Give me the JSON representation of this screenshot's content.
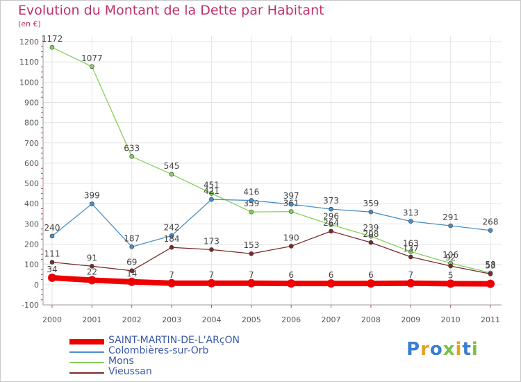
{
  "chart_data": {
    "type": "line",
    "title": "Evolution du Montant de la Dette par Habitant",
    "unit": "(en €)",
    "x": [
      "2000",
      "2001",
      "2002",
      "2003",
      "2004",
      "2005",
      "2006",
      "2007",
      "2008",
      "2009",
      "2010",
      "2011"
    ],
    "ylim": [
      -100,
      1200
    ],
    "yticks": [
      "-100",
      "0",
      "100",
      "200",
      "300",
      "400",
      "500",
      "600",
      "700",
      "800",
      "900",
      "1000",
      "1100",
      "1200"
    ],
    "grid": true,
    "legend_position": "bottom-left",
    "series": [
      {
        "name": "SAINT-MARTIN-DE-L'ARçON",
        "color": "#ee0000",
        "values": [
          34,
          22,
          14,
          7,
          7,
          7,
          6,
          6,
          6,
          7,
          5,
          4
        ],
        "labels": [
          "34",
          "22",
          "14",
          "7",
          "7",
          "7",
          "6",
          "6",
          "6",
          "7",
          "5",
          ""
        ],
        "width": "thick"
      },
      {
        "name": "Colombières-sur-Orb",
        "color": "#4a90c8",
        "values": [
          240,
          399,
          187,
          242,
          421,
          416,
          397,
          373,
          359,
          313,
          291,
          268
        ],
        "labels": [
          "240",
          "399",
          "187",
          "242",
          "421",
          "416",
          "397",
          "373",
          "359",
          "313",
          "291",
          "268"
        ],
        "width": "thin"
      },
      {
        "name": "Mons",
        "color": "#88d05a",
        "values": [
          1172,
          1077,
          633,
          545,
          451,
          359,
          361,
          296,
          239,
          163,
          106,
          58
        ],
        "labels": [
          "1172",
          "1077",
          "633",
          "545",
          "451",
          "359",
          "361",
          "296",
          "239",
          "163",
          "106",
          "58"
        ],
        "width": "thin"
      },
      {
        "name": "Vieussan",
        "color": "#7a2a2a",
        "values": [
          111,
          91,
          69,
          184,
          173,
          153,
          190,
          264,
          208,
          137,
          92,
          53
        ],
        "labels": [
          "111",
          "91",
          "69",
          "184",
          "173",
          "153",
          "190",
          "264",
          "208",
          "137",
          "92",
          "53"
        ],
        "width": "thin"
      }
    ]
  },
  "logo": {
    "text": "Proxiti"
  }
}
